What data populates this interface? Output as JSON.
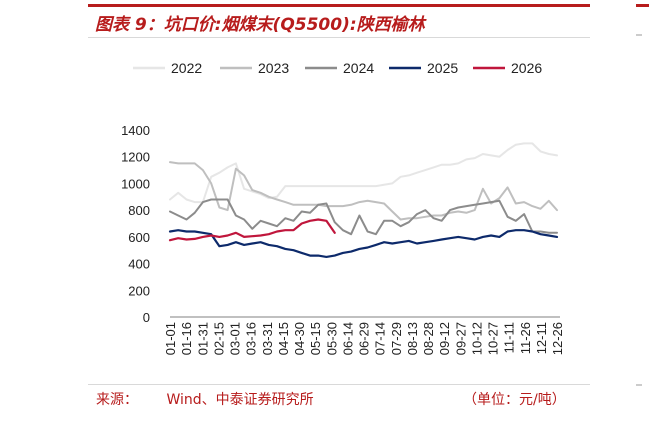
{
  "header": {
    "title": "图表 9：坑口价:烟煤末(Q5500):陕西榆林"
  },
  "footer": {
    "source_label": "来源：",
    "source_text": "Wind、中泰证券研究所",
    "unit": "（单位：元/吨）"
  },
  "chart_data": {
    "type": "line",
    "title": "坑口价:烟煤末(Q5500):陕西榆林",
    "ylim": [
      0,
      1400
    ],
    "yticks": [
      0,
      200,
      400,
      600,
      800,
      1000,
      1200,
      1400
    ],
    "x_tick_labels": [
      "01-01",
      "01-16",
      "01-31",
      "02-15",
      "03-01",
      "03-16",
      "03-31",
      "04-15",
      "04-30",
      "05-15",
      "05-30",
      "06-14",
      "06-29",
      "07-14",
      "07-29",
      "08-13",
      "08-28",
      "09-12",
      "09-27",
      "10-12",
      "10-27",
      "11-11",
      "11-26",
      "12-11",
      "12-26"
    ],
    "legend_position": "top",
    "grid": false,
    "series": [
      {
        "name": "2022",
        "color": "#e6e6e6",
        "width": 2,
        "values": [
          880,
          930,
          880,
          860,
          860,
          1050,
          1080,
          1120,
          1150,
          960,
          940,
          920,
          890,
          900,
          980,
          980,
          980,
          980,
          980,
          980,
          980,
          980,
          980,
          980,
          980,
          980,
          990,
          1000,
          1050,
          1060,
          1080,
          1100,
          1120,
          1140,
          1140,
          1150,
          1180,
          1190,
          1220,
          1210,
          1200,
          1250,
          1290,
          1300,
          1300,
          1240,
          1220,
          1210
        ]
      },
      {
        "name": "2023",
        "color": "#bfbfbf",
        "width": 2,
        "values": [
          1160,
          1150,
          1150,
          1150,
          1100,
          1000,
          820,
          800,
          1110,
          1060,
          950,
          930,
          900,
          880,
          860,
          840,
          840,
          840,
          840,
          830,
          830,
          830,
          840,
          860,
          870,
          860,
          850,
          790,
          730,
          740,
          740,
          750,
          760,
          760,
          780,
          790,
          780,
          800,
          960,
          850,
          890,
          970,
          850,
          860,
          830,
          810,
          870,
          800
        ]
      },
      {
        "name": "2024",
        "color": "#8c8c8c",
        "width": 2,
        "values": [
          790,
          760,
          730,
          780,
          860,
          880,
          880,
          880,
          760,
          730,
          660,
          720,
          700,
          680,
          740,
          720,
          790,
          780,
          840,
          850,
          710,
          650,
          620,
          760,
          640,
          620,
          720,
          720,
          680,
          710,
          770,
          800,
          740,
          720,
          800,
          820,
          830,
          840,
          850,
          860,
          870,
          750,
          720,
          770,
          640,
          640,
          630,
          630
        ]
      },
      {
        "name": "2025",
        "color": "#0d2a6b",
        "width": 2.2,
        "values": [
          640,
          650,
          640,
          640,
          630,
          620,
          530,
          540,
          560,
          540,
          550,
          560,
          540,
          530,
          510,
          500,
          480,
          460,
          460,
          450,
          460,
          480,
          490,
          510,
          520,
          540,
          560,
          550,
          560,
          570,
          550,
          560,
          570,
          580,
          590,
          600,
          590,
          580,
          600,
          610,
          600,
          640,
          650,
          650,
          640,
          620,
          610,
          600
        ]
      },
      {
        "name": "2026",
        "color": "#c0163c",
        "width": 2.2,
        "values": [
          575,
          590,
          580,
          585,
          600,
          610,
          600,
          610,
          630,
          600,
          605,
          610,
          620,
          640,
          650,
          650,
          700,
          720,
          730,
          720,
          630
        ]
      }
    ]
  }
}
